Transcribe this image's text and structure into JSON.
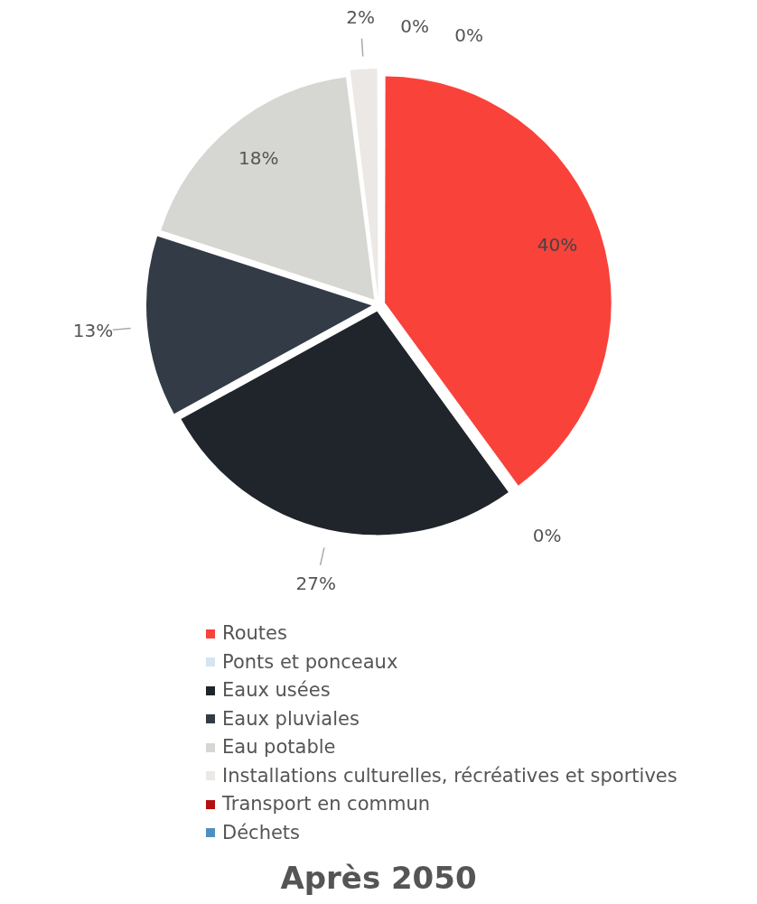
{
  "chart_data": {
    "type": "pie",
    "title": "Après 2050",
    "categories": [
      "Routes",
      "Ponts et ponceaux",
      "Eaux usées",
      "Eaux pluviales",
      "Eau potable",
      "Installations culturelles, récréatives et sportives",
      "Transport en commun",
      "Déchets"
    ],
    "values": [
      40,
      0,
      27,
      13,
      18,
      2,
      0,
      0
    ],
    "colors": [
      "#f9423a",
      "#d4e5f0",
      "#20252b",
      "#323b46",
      "#d6d6d2",
      "#ebe8e5",
      "#b30f0f",
      "#4f8fbf"
    ],
    "value_labels": [
      "40%",
      "0%",
      "27%",
      "13%",
      "18%",
      "2%",
      "0%",
      "0%"
    ],
    "legend": "bottom"
  }
}
